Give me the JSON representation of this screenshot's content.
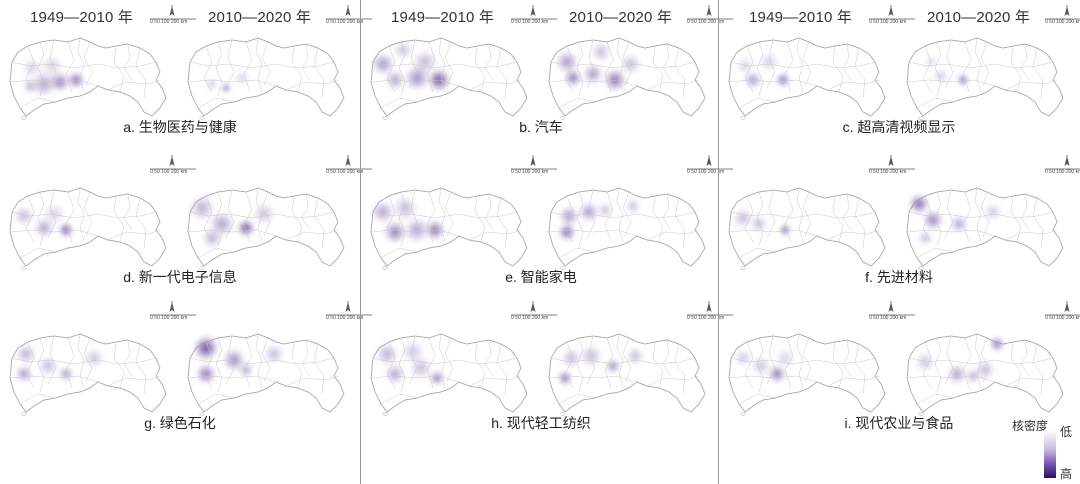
{
  "periods": [
    "1949—2010 年",
    "2010—2020 年"
  ],
  "scale_text": "0 50 100     200 km",
  "north_label": "N",
  "colors": {
    "density_high": "#2e1066",
    "density_low": "#ffffff",
    "boundary": "#b5b5b5"
  },
  "panels": [
    {
      "caption": "a. 生物医药与健康"
    },
    {
      "caption": "b. 汽车"
    },
    {
      "caption": "c. 超高清视频显示"
    },
    {
      "caption": "d. 新一代电子信息"
    },
    {
      "caption": "e. 智能家电"
    },
    {
      "caption": "f. 先进材料"
    },
    {
      "caption": "g. 绿色石化"
    },
    {
      "caption": "h. 现代轻工纺织"
    },
    {
      "caption": "i. 现代农业与食品"
    }
  ],
  "legend": {
    "title": "核密度",
    "low": "低",
    "high": "高"
  }
}
